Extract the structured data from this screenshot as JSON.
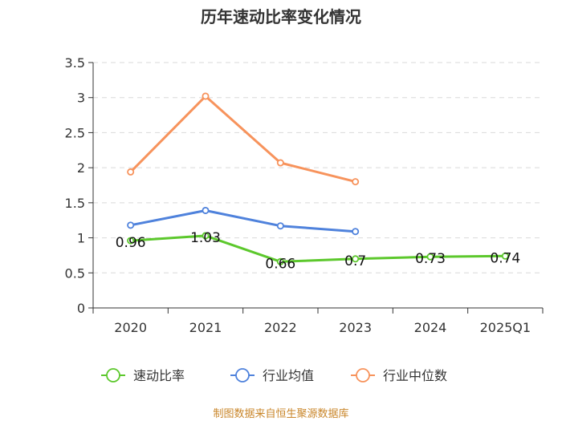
{
  "chart_data": {
    "type": "line",
    "title": "历年速动比率变化情况",
    "categories": [
      "2020",
      "2021",
      "2022",
      "2023",
      "2024",
      "2025Q1"
    ],
    "ylim": [
      0,
      3.5
    ],
    "yticks": [
      "0",
      "0.5",
      "1",
      "1.5",
      "2",
      "2.5",
      "3",
      "3.5"
    ],
    "grid": true,
    "legend_position": "bottom",
    "series": [
      {
        "name": "速动比率",
        "color": "#5cc82c",
        "values": [
          0.96,
          1.03,
          0.66,
          0.7,
          0.73,
          0.74
        ],
        "labels": [
          "0.96",
          "1.03",
          "0.66",
          "0.7",
          "0.73",
          "0.74"
        ]
      },
      {
        "name": "行业均值",
        "color": "#4f82dc",
        "values": [
          1.18,
          1.39,
          1.17,
          1.09,
          null,
          null
        ]
      },
      {
        "name": "行业中位数",
        "color": "#f7935c",
        "values": [
          1.94,
          3.02,
          2.07,
          1.8,
          null,
          null
        ]
      }
    ],
    "source": "制图数据来自恒生聚源数据库"
  }
}
